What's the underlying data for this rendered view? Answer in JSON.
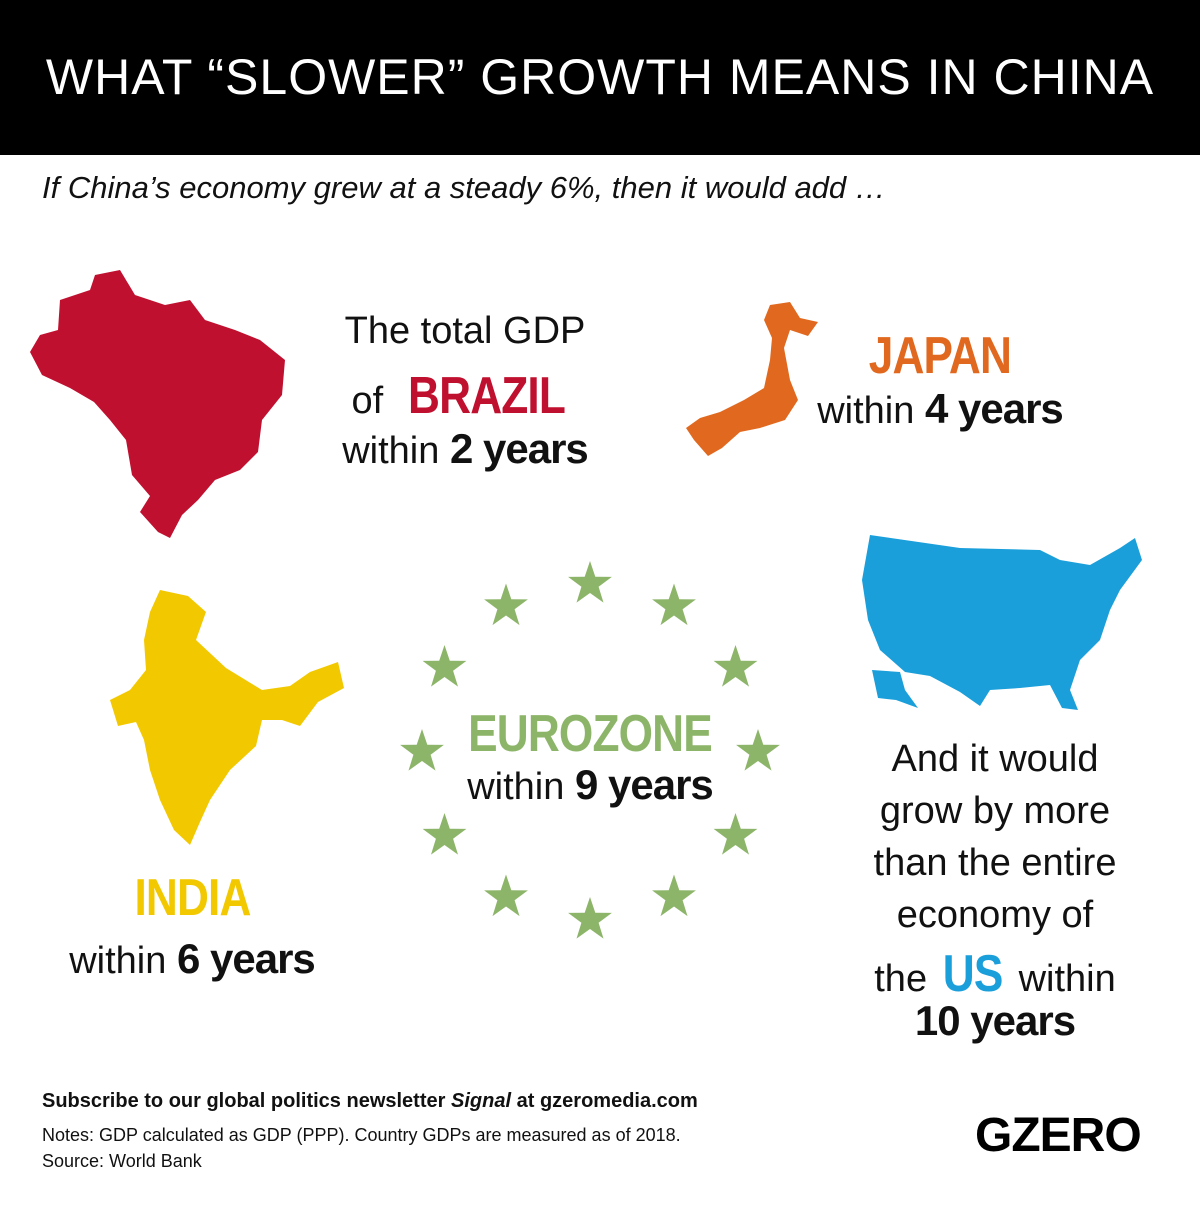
{
  "header": {
    "title": "WHAT “SLOWER” GROWTH MEANS IN CHINA"
  },
  "subtitle": "If China’s economy grew at a steady 6%, then it would add …",
  "panels": [
    {
      "name": "brazil",
      "color": "#c0102f",
      "lines": [
        [
          {
            "text": "The total GDP",
            "style": "plain"
          }
        ],
        [
          {
            "text": "of",
            "style": "plain"
          },
          {
            "text": "BRAZIL",
            "style": "country"
          }
        ],
        [
          {
            "text": "within",
            "style": "plain"
          },
          {
            "text": "2 years",
            "style": "bold"
          }
        ]
      ]
    },
    {
      "name": "japan",
      "color": "#e0691f",
      "lines": [
        [
          {
            "text": "JAPAN",
            "style": "country"
          }
        ],
        [
          {
            "text": "within",
            "style": "plain"
          },
          {
            "text": "4 years",
            "style": "bold"
          }
        ]
      ]
    },
    {
      "name": "india",
      "color": "#f2c800",
      "lines": [
        [
          {
            "text": "INDIA",
            "style": "country"
          }
        ],
        [
          {
            "text": "within",
            "style": "plain"
          },
          {
            "text": "6 years",
            "style": "bold"
          }
        ]
      ]
    },
    {
      "name": "eurozone",
      "color": "#8db56a",
      "lines": [
        [
          {
            "text": "EUROZONE",
            "style": "country"
          }
        ],
        [
          {
            "text": "within",
            "style": "plain"
          },
          {
            "text": "9 years",
            "style": "bold"
          }
        ]
      ]
    },
    {
      "name": "us",
      "color": "#1a9fdb",
      "lines": [
        [
          {
            "text": "And it would",
            "style": "plain"
          }
        ],
        [
          {
            "text": "grow by more",
            "style": "plain"
          }
        ],
        [
          {
            "text": "than the entire",
            "style": "plain"
          }
        ],
        [
          {
            "text": "economy of",
            "style": "plain"
          }
        ],
        [
          {
            "text": "the",
            "style": "plain"
          },
          {
            "text": "US",
            "style": "country"
          },
          {
            "text": "within",
            "style": "plain"
          }
        ],
        [
          {
            "text": "10 years",
            "style": "bold"
          }
        ]
      ]
    }
  ],
  "footer": {
    "subscribe": [
      {
        "text": "Subscribe to our global politics newsletter",
        "style": "bold"
      },
      {
        "text": "Signal",
        "style": "italic"
      },
      {
        "text": "at gzeromedia.com",
        "style": "bold"
      }
    ],
    "notes": "Notes: GDP calculated as GDP (PPP). Country GDPs are measured as of 2018.",
    "source": "Source: World Bank",
    "logo": "GZERO"
  }
}
